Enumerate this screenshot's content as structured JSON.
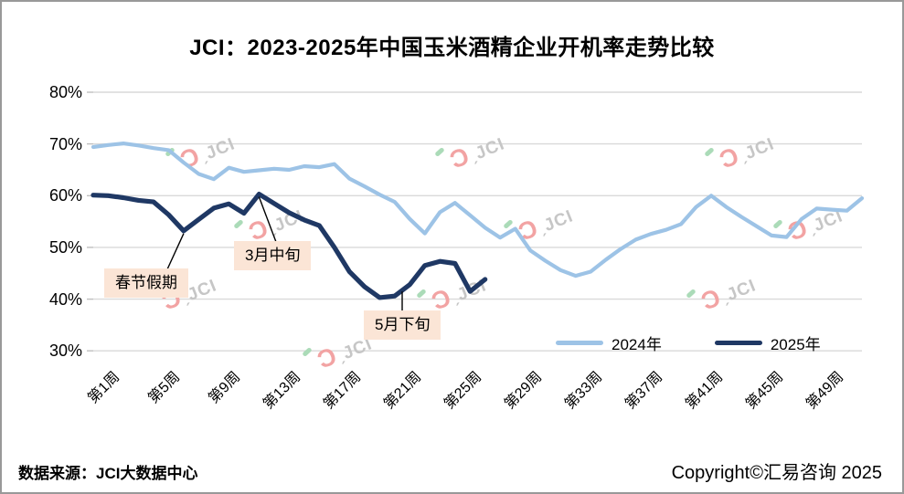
{
  "title": "JCI：2023-2025年中国玉米酒精企业开机率走势比较",
  "footer": {
    "source": "数据来源：JCI大数据中心",
    "copyright": "Copyright©汇易咨询 2025"
  },
  "watermark": {
    "symbol": "Ɔ",
    "label": "ˏJCI"
  },
  "colors": {
    "series_2024": "#9DC3E6",
    "series_2025": "#1F3864",
    "gridline": "#D9D9D9",
    "callout_bg": "#FBE5D6",
    "watermark_pink": "#F2A3A3",
    "watermark_green": "#ABDBB8",
    "watermark_gray": "#C6C6C6"
  },
  "chart_data": {
    "type": "line",
    "title": "JCI：2023-2025年中国玉米酒精企业开机率走势比较",
    "xlabel": "",
    "ylabel": "",
    "ylim": [
      30,
      80
    ],
    "grid": true,
    "legend_position": "bottom-right-inside",
    "y_ticks": [
      {
        "value": 80,
        "label": "80%"
      },
      {
        "value": 70,
        "label": "70%"
      },
      {
        "value": 60,
        "label": "60%"
      },
      {
        "value": 50,
        "label": "50%"
      },
      {
        "value": 40,
        "label": "40%"
      },
      {
        "value": 30,
        "label": "30%"
      }
    ],
    "x_ticks": [
      {
        "week": 1,
        "label": "第1周"
      },
      {
        "week": 5,
        "label": "第5周"
      },
      {
        "week": 9,
        "label": "第9周"
      },
      {
        "week": 13,
        "label": "第13周"
      },
      {
        "week": 17,
        "label": "第17周"
      },
      {
        "week": 21,
        "label": "第21周"
      },
      {
        "week": 25,
        "label": "第25周"
      },
      {
        "week": 29,
        "label": "第29周"
      },
      {
        "week": 33,
        "label": "第33周"
      },
      {
        "week": 37,
        "label": "第37周"
      },
      {
        "week": 41,
        "label": "第41周"
      },
      {
        "week": 45,
        "label": "第45周"
      },
      {
        "week": 49,
        "label": "第49周"
      }
    ],
    "series": [
      {
        "name": "2024年",
        "color": "#9DC3E6",
        "start_week": 1,
        "values": [
          69.4,
          69.8,
          70.1,
          69.7,
          69.2,
          68.8,
          66.4,
          64.2,
          63.2,
          65.4,
          64.6,
          64.9,
          65.2,
          65.0,
          65.7,
          65.5,
          66.1,
          63.3,
          61.8,
          60.2,
          58.8,
          55.5,
          52.7,
          56.8,
          58.6,
          56.2,
          53.8,
          51.9,
          53.6,
          49.4,
          47.4,
          45.6,
          44.5,
          45.3,
          47.6,
          49.7,
          51.5,
          52.6,
          53.4,
          54.5,
          57.8,
          60.0,
          57.8,
          55.9,
          54.1,
          52.3,
          52.0,
          55.5,
          57.5,
          57.3,
          57.1,
          59.5
        ]
      },
      {
        "name": "2025年",
        "color": "#1F3864",
        "start_week": 1,
        "values": [
          60.1,
          60.0,
          59.6,
          59.1,
          58.8,
          56.3,
          53.2,
          55.4,
          57.6,
          58.4,
          56.6,
          60.3,
          58.5,
          56.7,
          55.3,
          54.2,
          50.0,
          45.3,
          42.4,
          40.3,
          40.6,
          42.8,
          46.5,
          47.3,
          46.9,
          41.5,
          43.8
        ]
      }
    ],
    "annotations": [
      {
        "label": "春节假期",
        "target_week": 7,
        "target_value": 53.2
      },
      {
        "label": "3月中旬",
        "target_week": 12,
        "target_value": 60.3
      },
      {
        "label": "5月下旬",
        "target_week": 21.5,
        "target_value": 42.0
      }
    ]
  }
}
